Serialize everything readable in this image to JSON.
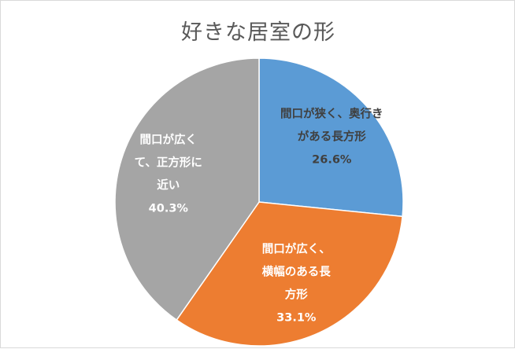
{
  "chart_data": {
    "type": "pie",
    "title": "好きな居室の形",
    "start_angle_deg": 0,
    "direction": "clockwise",
    "slices": [
      {
        "label_lines": [
          "間口が狭く、奥行き",
          "がある長方形"
        ],
        "value": 26.6,
        "value_label": "26.6%",
        "color": "#5b9bd5",
        "label_color": "#404040"
      },
      {
        "label_lines": [
          "間口が広く、",
          "横幅のある長",
          "方形"
        ],
        "value": 33.1,
        "value_label": "33.1%",
        "color": "#ed7d31",
        "label_color": "#ffffff"
      },
      {
        "label_lines": [
          "間口が広く",
          "て、正方形に",
          "近い"
        ],
        "value": 40.3,
        "value_label": "40.3%",
        "color": "#a5a5a5",
        "label_color": "#ffffff"
      }
    ],
    "border_color": "#ffffff"
  }
}
